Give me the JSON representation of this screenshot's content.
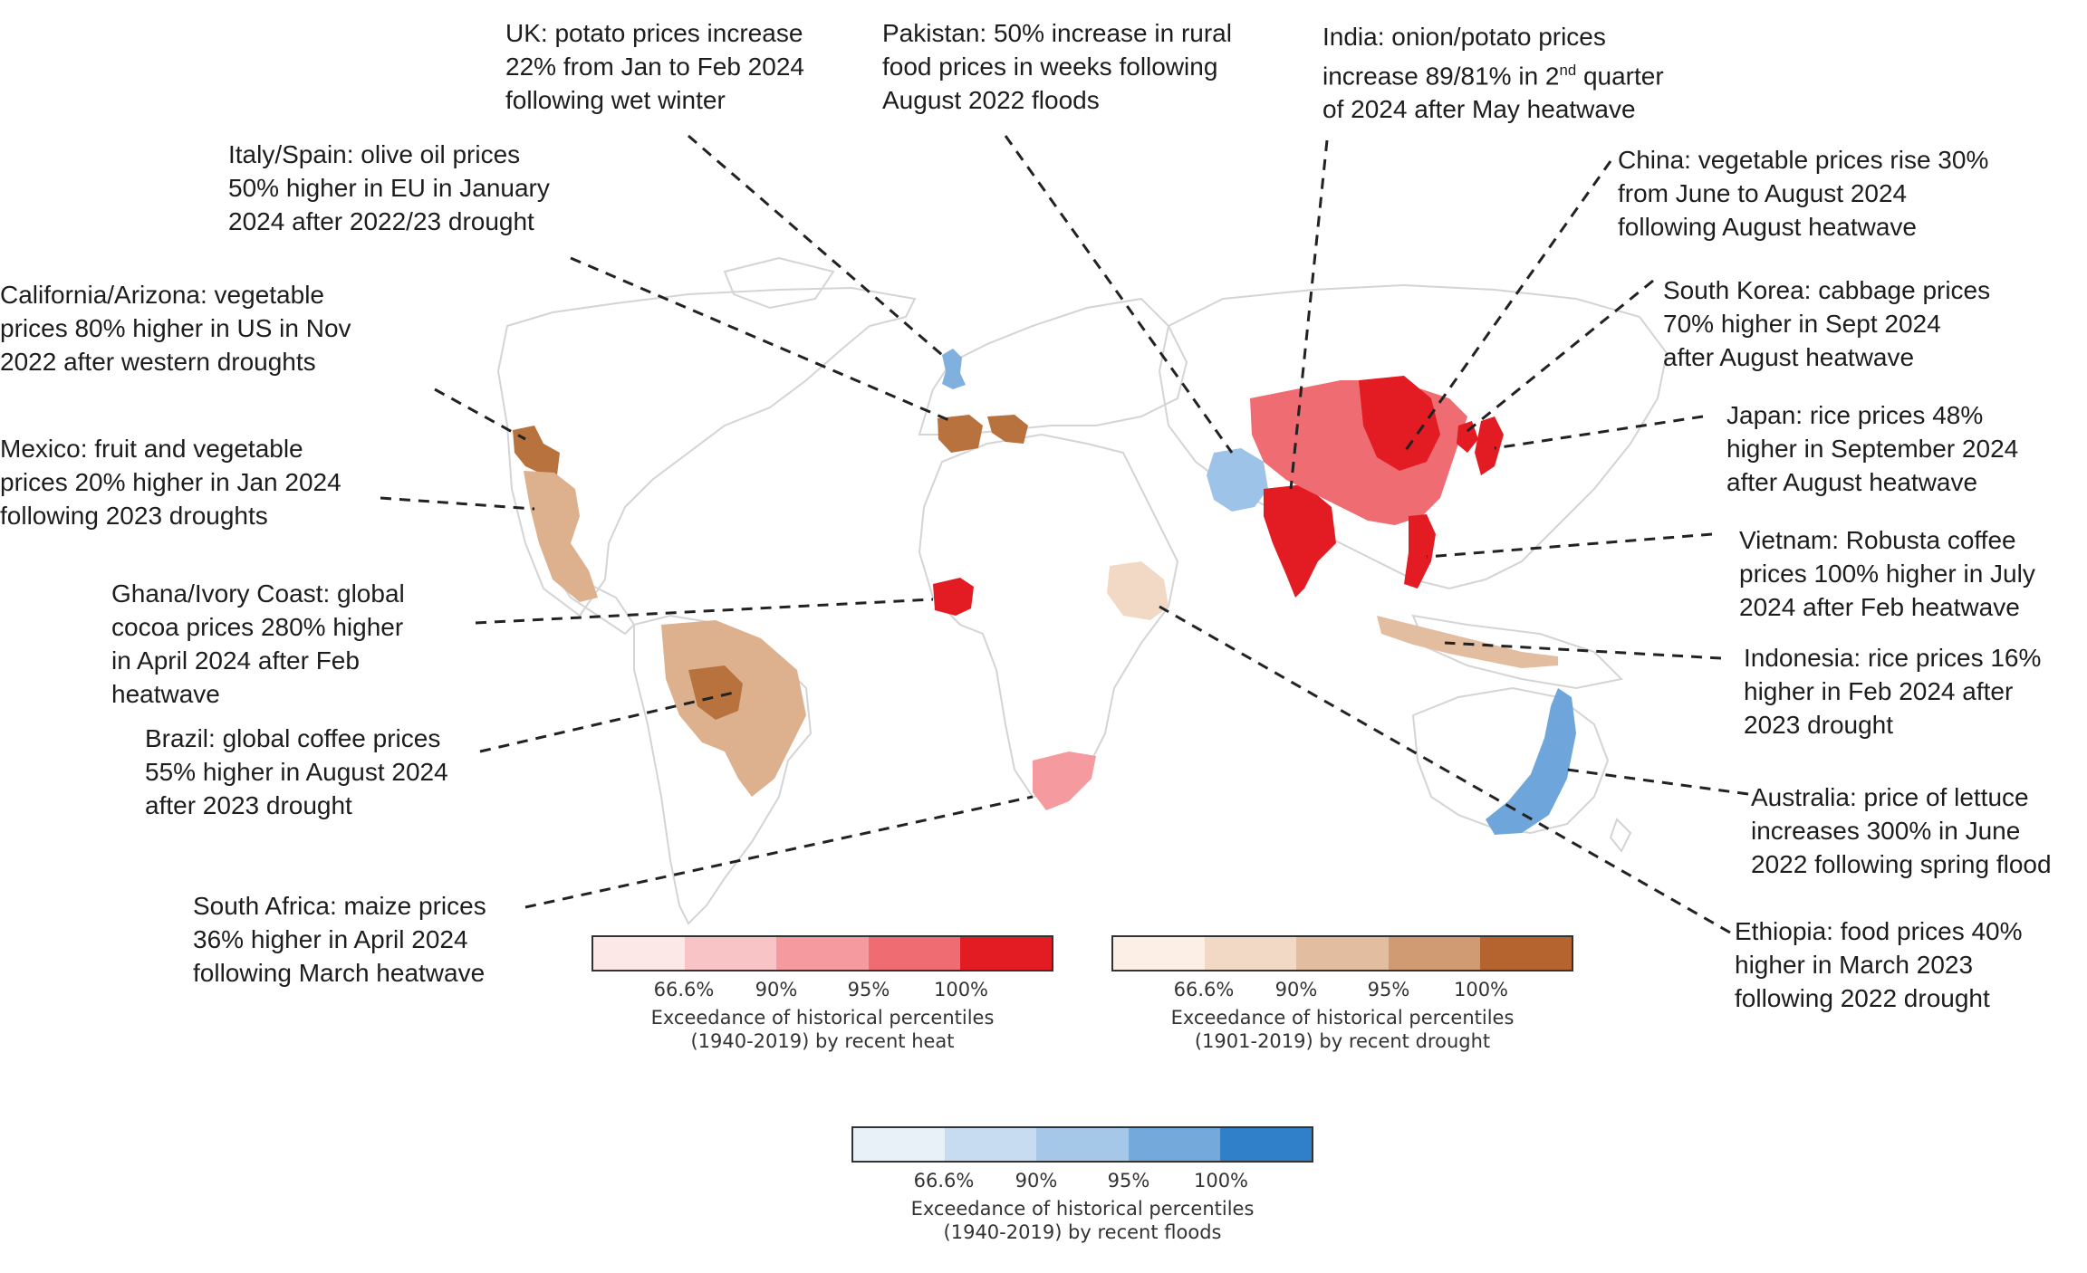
{
  "callouts": {
    "uk": [
      "UK: potato prices increase",
      "22% from Jan to Feb 2024",
      "following wet winter"
    ],
    "pakistan": [
      "Pakistan: 50% increase in rural",
      "food prices in weeks following",
      "August 2022 floods"
    ],
    "india": [
      "India: onion/potato prices",
      "increase 89/81% in 2nd quarter",
      "of 2024 after May heatwave"
    ],
    "italy_spain": [
      "Italy/Spain: olive oil prices",
      "50% higher in EU in January",
      "2024 after 2022/23 drought"
    ],
    "china": [
      "China: vegetable prices rise 30%",
      "from June to August 2024",
      "following August heatwave"
    ],
    "california": [
      "California/Arizona: vegetable",
      "prices 80% higher in US in Nov",
      "2022 after western droughts"
    ],
    "south_korea": [
      "South Korea: cabbage prices",
      "70% higher in Sept 2024",
      "after August heatwave"
    ],
    "mexico": [
      "Mexico: fruit and vegetable",
      "prices 20% higher in Jan 2024",
      "following 2023 droughts"
    ],
    "japan": [
      "Japan: rice prices 48%",
      "higher in September 2024",
      "after August heatwave"
    ],
    "ghana": [
      "Ghana/Ivory Coast: global",
      "cocoa prices 280% higher",
      "in April 2024 after Feb",
      "heatwave"
    ],
    "vietnam": [
      "Vietnam: Robusta coffee",
      "prices 100% higher in July",
      "2024 after Feb heatwave"
    ],
    "indonesia": [
      "Indonesia: rice prices 16%",
      "higher in Feb 2024 after",
      "2023 drought"
    ],
    "brazil": [
      "Brazil: global coffee prices",
      "55% higher in August 2024",
      "after 2023 drought"
    ],
    "australia": [
      "Australia: price of lettuce",
      "increases 300% in June",
      "2022 following spring flood"
    ],
    "south_africa": [
      "South Africa: maize prices",
      "36% higher in April 2024",
      "following March heatwave"
    ],
    "ethiopia": [
      "Ethiopia: food prices 40%",
      "higher in March 2023",
      "following 2022 drought"
    ]
  },
  "legends": {
    "heat": {
      "colors": [
        "#fde8e8",
        "#f9c4c6",
        "#f59a9e",
        "#ee6c72",
        "#e31b23"
      ],
      "ticks": [
        "66.6%",
        "90%",
        "95%",
        "100%"
      ],
      "caption": [
        "Exceedance of historical percentiles",
        "(1940-2019) by recent heat"
      ]
    },
    "drought": {
      "colors": [
        "#fcefe5",
        "#f1d9c6",
        "#e3bd9f",
        "#d09a73",
        "#b5642f"
      ],
      "ticks": [
        "66.6%",
        "90%",
        "95%",
        "100%"
      ],
      "caption": [
        "Exceedance of historical percentiles",
        "(1901-2019) by recent drought"
      ]
    },
    "floods": {
      "colors": [
        "#e8f0f8",
        "#c7dcf0",
        "#a6c8e8",
        "#74a9db",
        "#2f80c8"
      ],
      "ticks": [
        "66.6%",
        "90%",
        "95%",
        "100%"
      ],
      "caption": [
        "Exceedance of historical percentiles",
        "(1940-2019) by recent floods"
      ]
    }
  }
}
